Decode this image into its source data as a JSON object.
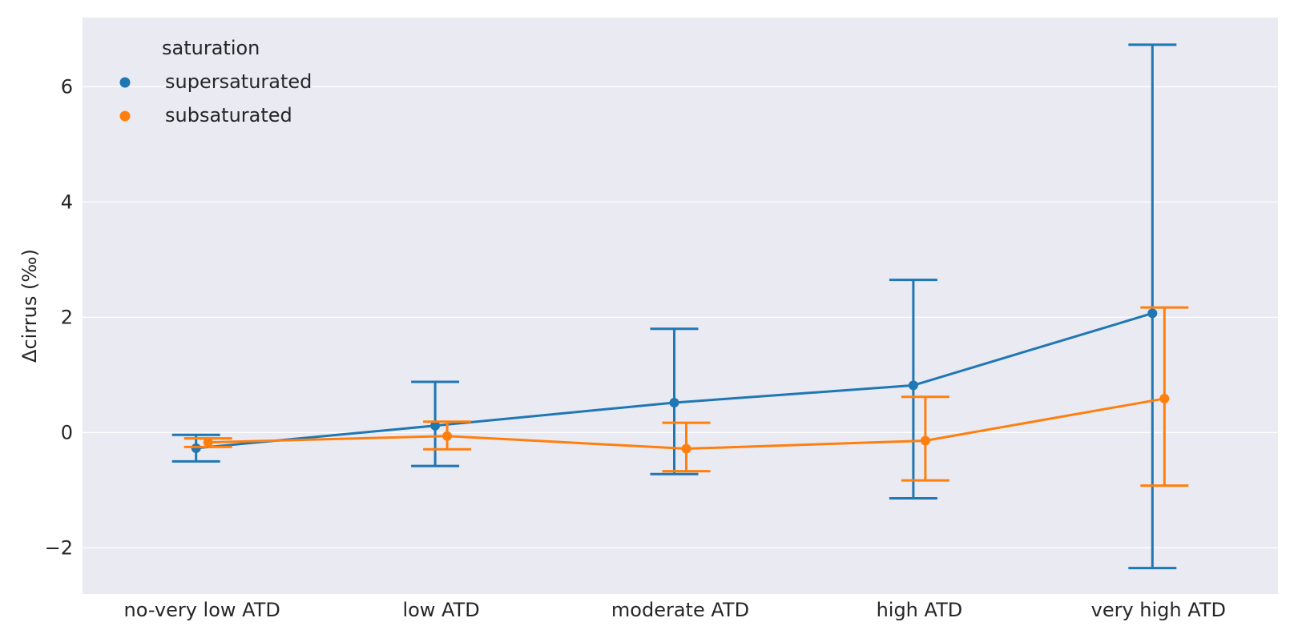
{
  "chart_data": {
    "type": "line",
    "title": "",
    "xlabel": "",
    "ylabel": "Δcirrus (‰)",
    "categories": [
      "no-very low ATD",
      "low ATD",
      "moderate ATD",
      "high ATD",
      "very high ATD"
    ],
    "ylim": [
      -2.8,
      7.2
    ],
    "yticks": [
      -2,
      0,
      2,
      4,
      6
    ],
    "yticklabels": [
      "−2",
      "0",
      "2",
      "4",
      "6"
    ],
    "grid": true,
    "legend": {
      "title": "saturation",
      "position": "top-left"
    },
    "series": [
      {
        "name": "supersaturated",
        "color": "#1f77b4",
        "values": [
          -0.27,
          0.12,
          0.52,
          0.82,
          2.07
        ],
        "err_low": [
          -0.5,
          -0.58,
          -0.72,
          -1.14,
          -2.35
        ],
        "err_high": [
          -0.04,
          0.88,
          1.8,
          2.65,
          6.73
        ]
      },
      {
        "name": "subsaturated",
        "color": "#ff7f0e",
        "values": [
          -0.17,
          -0.06,
          -0.28,
          -0.14,
          0.59
        ],
        "err_low": [
          -0.25,
          -0.29,
          -0.67,
          -0.83,
          -0.92
        ],
        "err_high": [
          -0.1,
          0.19,
          0.17,
          0.62,
          2.17
        ]
      }
    ]
  }
}
